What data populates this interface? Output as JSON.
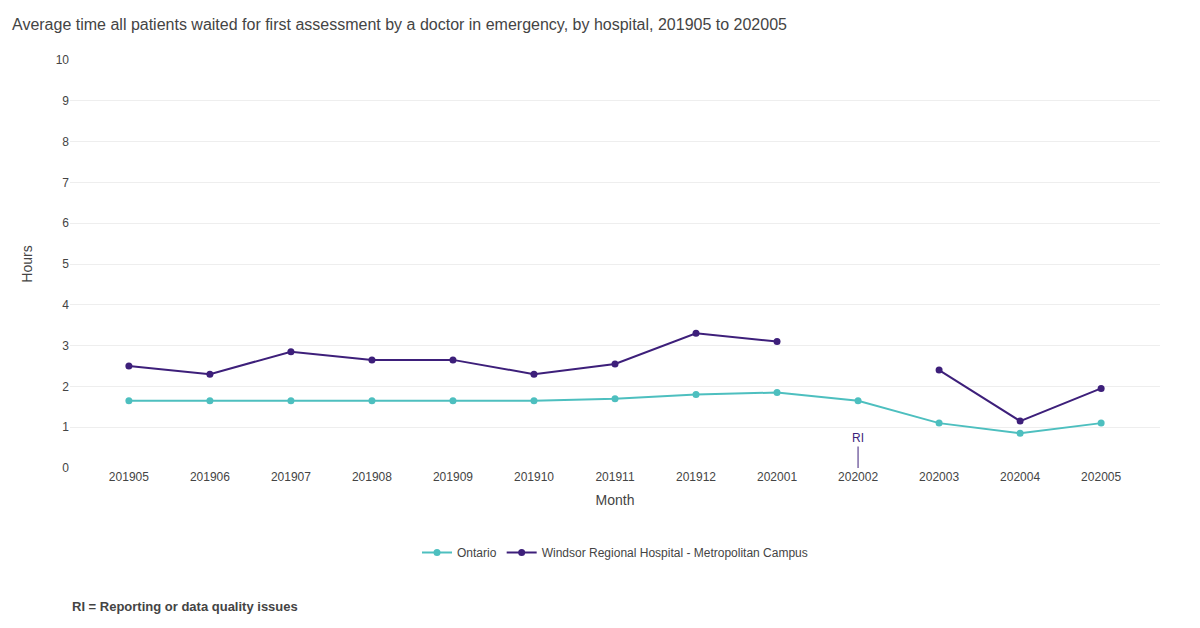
{
  "chart_data": {
    "type": "line",
    "title": "Average time all patients waited for first assessment by a doctor in emergency, by hospital, 201905 to 202005",
    "x_label": "Month",
    "y_label": "Hours",
    "categories": [
      "201905",
      "201906",
      "201907",
      "201908",
      "201909",
      "201910",
      "201911",
      "201912",
      "202001",
      "202002",
      "202003",
      "202004",
      "202005"
    ],
    "series": [
      {
        "name": "Ontario",
        "color": "#4dbfbf",
        "marker": "circle",
        "values": [
          1.65,
          1.65,
          1.65,
          1.65,
          1.65,
          1.65,
          1.7,
          1.8,
          1.85,
          1.65,
          1.1,
          0.85,
          1.1
        ]
      },
      {
        "name": "Windsor Regional Hospital - Metropolitan Campus",
        "color": "#3d1f7a",
        "marker": "circle",
        "values": [
          2.5,
          2.3,
          2.85,
          2.65,
          2.65,
          2.3,
          2.55,
          3.3,
          3.1,
          null,
          2.4,
          1.15,
          1.95
        ]
      }
    ],
    "ylim": [
      0,
      10
    ],
    "yticks": [
      0,
      1,
      2,
      3,
      4,
      5,
      6,
      7,
      8,
      9,
      10
    ],
    "grid": true,
    "legend": "bottom",
    "annotations": [
      {
        "text": "RI",
        "category": "202002",
        "color": "#3d1f7a"
      },
      {
        "text": "RI = Reporting or data quality issues"
      }
    ]
  }
}
